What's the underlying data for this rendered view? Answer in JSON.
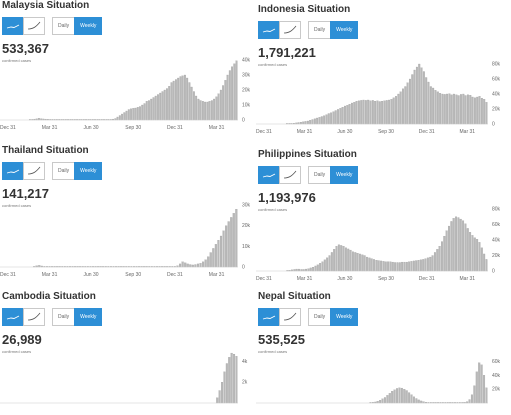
{
  "controls": {
    "daily_label": "Daily",
    "weekly_label": "Weekly"
  },
  "panels": [
    {
      "id": "malaysia",
      "title": "Malaysia Situation",
      "count": "533,367",
      "caption": "confirmed cases",
      "chart_data": {
        "type": "bar",
        "title": "Malaysia Situation",
        "xlabel": "",
        "ylabel": "",
        "xticks": [
          "Dec 31",
          "Mar 31",
          "Jun 30",
          "Sep 30",
          "Dec 31",
          "Mar 31"
        ],
        "yticks": [
          "40k",
          "30k",
          "20k",
          "10k",
          "0"
        ],
        "ylim": [
          0,
          40000
        ],
        "grid": false,
        "x_range": [
          "Dec 31",
          "early May"
        ],
        "values": [
          0,
          0,
          0,
          0,
          0,
          0,
          0,
          0,
          0,
          0,
          0,
          0,
          0,
          200,
          400,
          600,
          800,
          1200,
          900,
          700,
          600,
          500,
          400,
          350,
          300,
          250,
          200,
          150,
          120,
          100,
          100,
          90,
          80,
          80,
          80,
          70,
          70,
          60,
          60,
          60,
          60,
          60,
          60,
          60,
          60,
          70,
          80,
          100,
          150,
          300,
          600,
          1000,
          2000,
          3000,
          4000,
          5000,
          6000,
          7000,
          7500,
          7800,
          8000,
          8500,
          9000,
          10000,
          11000,
          12500,
          13000,
          14000,
          15000,
          16000,
          17000,
          18000,
          19000,
          20000,
          21000,
          22500,
          25000,
          26000,
          27000,
          28000,
          29000,
          29500,
          30000,
          28000,
          25000,
          22000,
          19000,
          16000,
          14000,
          13000,
          12500,
          12000,
          12000,
          12500,
          13000,
          14000,
          15500,
          17500,
          20000,
          23000,
          26500,
          30000,
          33000,
          35500,
          37500,
          39500
        ],
        "onset_index": 48,
        "x_tick_positions": [
          0,
          13,
          26,
          39,
          52,
          65
        ]
      }
    },
    {
      "id": "indonesia",
      "title": "Indonesia Situation",
      "count": "1,791,221",
      "caption": "confirmed cases",
      "chart_data": {
        "type": "bar",
        "title": "Indonesia Situation",
        "xlabel": "",
        "ylabel": "",
        "xticks": [
          "Dec 31",
          "Mar 31",
          "Jun 30",
          "Sep 30",
          "Dec 31",
          "Mar 31"
        ],
        "yticks": [
          "80k",
          "60k",
          "40k",
          "20k",
          "0"
        ],
        "ylim": [
          0,
          80000
        ],
        "grid": false,
        "values": [
          0,
          0,
          0,
          0,
          0,
          0,
          0,
          0,
          0,
          0,
          0,
          0,
          0,
          100,
          300,
          600,
          1000,
          1500,
          2000,
          2500,
          3000,
          3500,
          4000,
          5000,
          6000,
          7000,
          8000,
          9000,
          10000,
          11000,
          12500,
          14000,
          15000,
          16500,
          18000,
          19500,
          21000,
          22500,
          24000,
          25000,
          26500,
          28000,
          29000,
          30500,
          31000,
          31500,
          32000,
          31500,
          32000,
          31000,
          31500,
          30500,
          31000,
          30000,
          30500,
          31000,
          31500,
          32000,
          33000,
          35000,
          37000,
          40000,
          43000,
          47000,
          50000,
          55000,
          60000,
          66000,
          72000,
          76000,
          80000,
          75000,
          70000,
          62000,
          56000,
          50000,
          48000,
          45000,
          43000,
          41000,
          40000,
          39500,
          40000,
          40500,
          39000,
          40000,
          39000,
          38000,
          39500,
          40000,
          38000,
          39000,
          38500,
          36000,
          35000,
          36000,
          37000,
          34500,
          33000,
          29000
        ]
      }
    },
    {
      "id": "thailand",
      "title": "Thailand Situation",
      "count": "141,217",
      "caption": "confirmed cases",
      "chart_data": {
        "type": "bar",
        "title": "Thailand Situation",
        "xlabel": "",
        "ylabel": "",
        "xticks": [
          "Dec 31",
          "Mar 31",
          "Jun 30",
          "Sep 30",
          "Dec 31",
          "Mar 31"
        ],
        "yticks": [
          "30k",
          "20k",
          "10k",
          "0"
        ],
        "ylim": [
          0,
          30000
        ],
        "grid": false,
        "values": [
          0,
          0,
          0,
          0,
          0,
          0,
          0,
          0,
          0,
          0,
          0,
          0,
          0,
          200,
          600,
          800,
          500,
          300,
          150,
          80,
          50,
          30,
          20,
          20,
          20,
          15,
          15,
          15,
          15,
          15,
          15,
          15,
          15,
          15,
          15,
          15,
          15,
          15,
          15,
          20,
          20,
          20,
          20,
          20,
          20,
          20,
          20,
          20,
          20,
          20,
          25,
          25,
          25,
          30,
          30,
          35,
          40,
          40,
          40,
          40,
          40,
          40,
          40,
          50,
          50,
          60,
          80,
          100,
          200,
          600,
          1500,
          2500,
          2000,
          1500,
          1200,
          1000,
          1200,
          1500,
          1800,
          2500,
          3500,
          5000,
          7000,
          9000,
          11000,
          13000,
          15000,
          17500,
          20000,
          22000,
          24000,
          26000,
          28000
        ]
      }
    },
    {
      "id": "philippines",
      "title": "Philippines Situation",
      "count": "1,193,976",
      "caption": "confirmed cases",
      "chart_data": {
        "type": "bar",
        "title": "Philippines Situation",
        "xlabel": "",
        "ylabel": "",
        "xticks": [
          "Dec 31",
          "Mar 31",
          "Jun 30",
          "Sep 30",
          "Dec 31",
          "Mar 31"
        ],
        "yticks": [
          "80k",
          "60k",
          "40k",
          "20k",
          "0"
        ],
        "ylim": [
          0,
          80000
        ],
        "grid": false,
        "values": [
          0,
          0,
          0,
          0,
          0,
          0,
          0,
          0,
          0,
          0,
          0,
          0,
          0,
          500,
          1000,
          1500,
          2000,
          2500,
          2500,
          2000,
          2000,
          2500,
          3000,
          4000,
          5000,
          6500,
          8000,
          10000,
          12000,
          14500,
          17000,
          20000,
          24000,
          28000,
          32000,
          34000,
          33000,
          32000,
          30000,
          28500,
          27000,
          25000,
          24000,
          23000,
          22000,
          21000,
          20000,
          18000,
          17000,
          16000,
          15000,
          14000,
          13500,
          13000,
          12500,
          12000,
          12000,
          12000,
          11500,
          11000,
          11000,
          11000,
          11500,
          11500,
          11500,
          12000,
          12500,
          13000,
          13500,
          14000,
          14500,
          15000,
          16000,
          17000,
          18000,
          20000,
          24000,
          28000,
          32000,
          38000,
          45000,
          52000,
          58000,
          64000,
          68000,
          70000,
          69000,
          67000,
          65000,
          61000,
          55000,
          50000,
          46000,
          43000,
          41000,
          37000,
          30000,
          22000,
          15000
        ]
      }
    },
    {
      "id": "cambodia",
      "title": "Cambodia Situation",
      "count": "26,989",
      "caption": "confirmed cases",
      "chart_data": {
        "type": "bar",
        "title": "Cambodia Situation",
        "xlabel": "",
        "ylabel": "",
        "xticks": [],
        "yticks": [
          "4k",
          "2k"
        ],
        "ylim": [
          0,
          5000
        ],
        "grid": false,
        "values": [
          0,
          0,
          0,
          0,
          0,
          0,
          0,
          0,
          0,
          0,
          0,
          0,
          0,
          0,
          0,
          0,
          0,
          0,
          0,
          0,
          0,
          0,
          0,
          0,
          0,
          0,
          0,
          0,
          0,
          0,
          0,
          0,
          0,
          0,
          0,
          0,
          0,
          0,
          0,
          0,
          0,
          0,
          0,
          0,
          0,
          0,
          0,
          0,
          0,
          0,
          0,
          0,
          0,
          0,
          0,
          0,
          0,
          0,
          0,
          0,
          0,
          0,
          0,
          0,
          0,
          0,
          0,
          0,
          0,
          0,
          0,
          0,
          0,
          0,
          0,
          0,
          0,
          0,
          0,
          0,
          0,
          0,
          0,
          0,
          0,
          0,
          0,
          0,
          0,
          0,
          500,
          1200,
          2000,
          3000,
          3800,
          4400,
          4800,
          4700,
          4500
        ]
      }
    },
    {
      "id": "nepal",
      "title": "Nepal Situation",
      "count": "535,525",
      "caption": "confirmed cases",
      "chart_data": {
        "type": "bar",
        "title": "Nepal Situation",
        "xlabel": "",
        "ylabel": "",
        "xticks": [],
        "yticks": [
          "60k",
          "40k",
          "20k"
        ],
        "ylim": [
          0,
          75000
        ],
        "grid": false,
        "values": [
          0,
          0,
          0,
          0,
          0,
          0,
          0,
          0,
          0,
          0,
          0,
          0,
          0,
          0,
          0,
          0,
          0,
          0,
          0,
          0,
          0,
          0,
          0,
          0,
          0,
          0,
          0,
          0,
          0,
          0,
          0,
          0,
          0,
          0,
          0,
          0,
          0,
          0,
          0,
          0,
          0,
          0,
          0,
          0,
          0,
          0,
          0,
          500,
          1000,
          1500,
          2500,
          4000,
          6000,
          8000,
          11000,
          14000,
          17000,
          19000,
          21000,
          22000,
          21500,
          20000,
          18000,
          15000,
          12000,
          9000,
          6500,
          4500,
          3000,
          2000,
          1200,
          800,
          600,
          500,
          400,
          400,
          300,
          300,
          300,
          300,
          300,
          300,
          300,
          300,
          400,
          600,
          1000,
          2000,
          5000,
          12000,
          25000,
          45000,
          58000,
          55000,
          40000,
          22000
        ]
      }
    }
  ]
}
